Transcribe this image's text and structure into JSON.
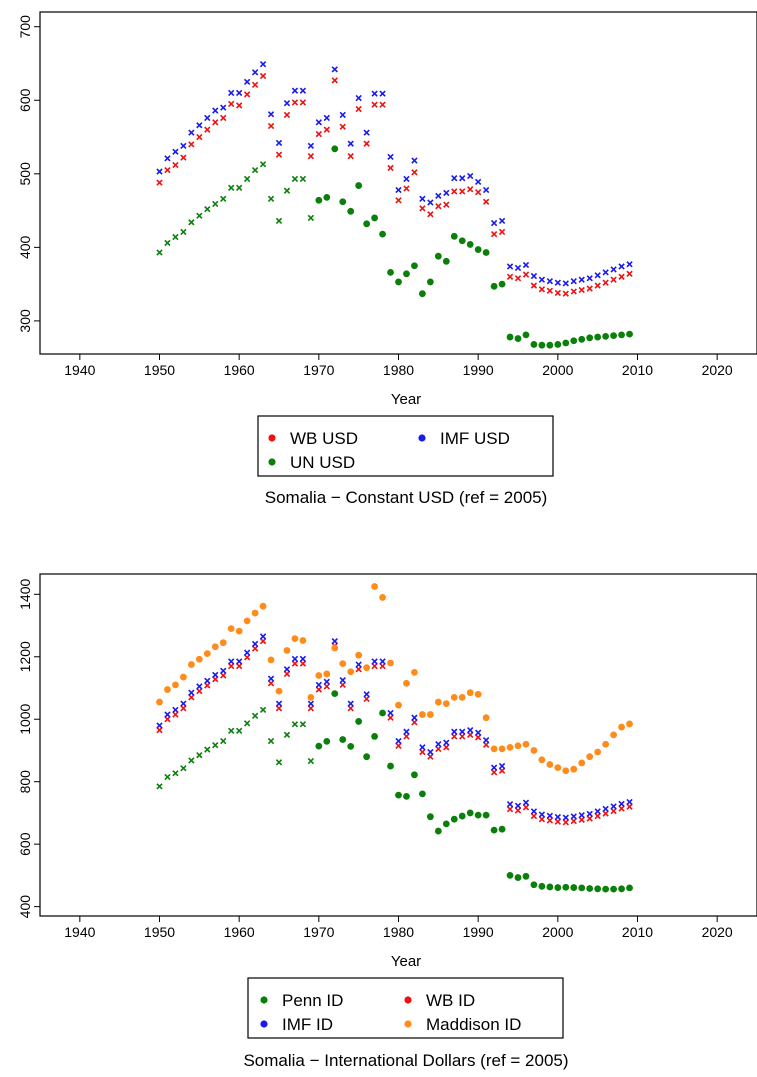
{
  "chart_data": [
    {
      "type": "scatter",
      "title": "Somalia − Constant USD (ref = 2005)",
      "xlabel": "Year",
      "ylabel": "",
      "xlim": [
        1935,
        2025
      ],
      "ylim": [
        255,
        720
      ],
      "x_ticks": [
        1940,
        1950,
        1960,
        1970,
        1980,
        1990,
        2000,
        2010,
        2020
      ],
      "y_ticks": [
        300,
        400,
        500,
        600,
        700
      ],
      "grid": false,
      "legend_placement": "bottom",
      "legend_order": [
        "WB USD",
        "IMF USD",
        "UN USD"
      ],
      "series": [
        {
          "name": "WB USD",
          "color": "#ee1111",
          "marker": "x",
          "x": [
            1950,
            1951,
            1952,
            1953,
            1954,
            1955,
            1956,
            1957,
            1958,
            1959,
            1960,
            1961,
            1962,
            1963,
            1964,
            1965,
            1966,
            1967,
            1968,
            1969,
            1970,
            1971,
            1972,
            1973,
            1974,
            1975,
            1976,
            1977,
            1978,
            1979,
            1980,
            1981,
            1982,
            1983,
            1984,
            1985,
            1986,
            1987,
            1988,
            1989,
            1990,
            1991,
            1992,
            1993,
            1994,
            1995,
            1996,
            1997,
            1998,
            1999,
            2000,
            2001,
            2002,
            2003,
            2004,
            2005,
            2006,
            2007,
            2008,
            2009
          ],
          "y": [
            488,
            505,
            512,
            522,
            540,
            550,
            560,
            570,
            576,
            595,
            593,
            608,
            621,
            633,
            565,
            526,
            580,
            597,
            597,
            524,
            554,
            560,
            627,
            564,
            524,
            588,
            541,
            594,
            594,
            508,
            464,
            480,
            502,
            453,
            445,
            456,
            458,
            476,
            476,
            479,
            475,
            462,
            418,
            421,
            360,
            358,
            363,
            348,
            343,
            341,
            338,
            337,
            340,
            342,
            344,
            348,
            352,
            356,
            360,
            364
          ]
        },
        {
          "name": "IMF USD",
          "color": "#1a1aee",
          "marker": "x",
          "x": [
            1950,
            1951,
            1952,
            1953,
            1954,
            1955,
            1956,
            1957,
            1958,
            1959,
            1960,
            1961,
            1962,
            1963,
            1964,
            1965,
            1966,
            1967,
            1968,
            1969,
            1970,
            1971,
            1972,
            1973,
            1974,
            1975,
            1976,
            1977,
            1978,
            1979,
            1980,
            1981,
            1982,
            1983,
            1984,
            1985,
            1986,
            1987,
            1988,
            1989,
            1990,
            1991,
            1992,
            1993,
            1994,
            1995,
            1996,
            1997,
            1998,
            1999,
            2000,
            2001,
            2002,
            2003,
            2004,
            2005,
            2006,
            2007,
            2008,
            2009
          ],
          "y": [
            503,
            521,
            530,
            538,
            556,
            566,
            576,
            586,
            590,
            610,
            610,
            625,
            638,
            649,
            581,
            542,
            596,
            613,
            613,
            538,
            570,
            576,
            642,
            580,
            541,
            603,
            556,
            609,
            609,
            523,
            478,
            493,
            518,
            466,
            461,
            470,
            474,
            494,
            494,
            497,
            489,
            478,
            433,
            436,
            374,
            372,
            376,
            361,
            356,
            354,
            352,
            351,
            354,
            356,
            358,
            362,
            366,
            370,
            374,
            377
          ]
        },
        {
          "name": "UN USD",
          "color": "#0a7f0a",
          "marker": "mixed",
          "x": [
            1950,
            1951,
            1952,
            1953,
            1954,
            1955,
            1956,
            1957,
            1958,
            1959,
            1960,
            1961,
            1962,
            1963,
            1964,
            1965,
            1966,
            1967,
            1968,
            1969,
            1970,
            1971,
            1972,
            1973,
            1974,
            1975,
            1976,
            1977,
            1978,
            1979,
            1980,
            1981,
            1982,
            1983,
            1984,
            1985,
            1986,
            1987,
            1988,
            1989,
            1990,
            1991,
            1992,
            1993,
            1994,
            1995,
            1996,
            1997,
            1998,
            1999,
            2000,
            2001,
            2002,
            2003,
            2004,
            2005,
            2006,
            2007,
            2008,
            2009
          ],
          "y": [
            393,
            406,
            414,
            421,
            434,
            443,
            452,
            459,
            466,
            481,
            481,
            493,
            505,
            513,
            466,
            436,
            477,
            493,
            493,
            440,
            464,
            468,
            534,
            462,
            449,
            484,
            432,
            440,
            418,
            366,
            353,
            364,
            375,
            337,
            353,
            388,
            381,
            415,
            409,
            404,
            397,
            393,
            347,
            350,
            278,
            276,
            281,
            268,
            267,
            267,
            268,
            270,
            273,
            275,
            277,
            278,
            279,
            280,
            281,
            282
          ],
          "markers": [
            "x",
            "x",
            "x",
            "x",
            "x",
            "x",
            "x",
            "x",
            "x",
            "x",
            "x",
            "x",
            "x",
            "x",
            "x",
            "x",
            "x",
            "x",
            "x",
            "x",
            "o",
            "o",
            "o",
            "o",
            "o",
            "o",
            "o",
            "o",
            "o",
            "o",
            "o",
            "o",
            "o",
            "o",
            "o",
            "o",
            "o",
            "o",
            "o",
            "o",
            "o",
            "o",
            "o",
            "o",
            "o",
            "o",
            "o",
            "o",
            "o",
            "o",
            "o",
            "o",
            "o",
            "o",
            "o",
            "o",
            "o",
            "o",
            "o",
            "o"
          ]
        }
      ]
    },
    {
      "type": "scatter",
      "title": "Somalia − International Dollars (ref = 2005)",
      "xlabel": "Year",
      "ylabel": "",
      "xlim": [
        1935,
        2025
      ],
      "ylim": [
        370,
        1465
      ],
      "x_ticks": [
        1940,
        1950,
        1960,
        1970,
        1980,
        1990,
        2000,
        2010,
        2020
      ],
      "y_ticks": [
        400,
        600,
        800,
        1000,
        1200,
        1400
      ],
      "grid": false,
      "legend_placement": "bottom",
      "legend_order": [
        "Penn ID",
        "WB ID",
        "IMF ID",
        "Maddison ID"
      ],
      "series": [
        {
          "name": "Penn ID",
          "color": "#0a7f0a",
          "marker": "mixed",
          "x": [
            1950,
            1951,
            1952,
            1953,
            1954,
            1955,
            1956,
            1957,
            1958,
            1959,
            1960,
            1961,
            1962,
            1963,
            1964,
            1965,
            1966,
            1967,
            1968,
            1969,
            1970,
            1971,
            1972,
            1973,
            1974,
            1975,
            1976,
            1977,
            1978,
            1979,
            1980,
            1981,
            1982,
            1983,
            1984,
            1985,
            1986,
            1987,
            1988,
            1989,
            1990,
            1991,
            1992,
            1993,
            1994,
            1995,
            1996,
            1997,
            1998,
            1999,
            2000,
            2001,
            2002,
            2003,
            2004,
            2005,
            2006,
            2007,
            2008,
            2009
          ],
          "y": [
            785,
            815,
            827,
            843,
            868,
            885,
            903,
            917,
            930,
            963,
            963,
            987,
            1011,
            1030,
            930,
            862,
            950,
            984,
            984,
            866,
            914,
            929,
            1082,
            935,
            913,
            993,
            880,
            945,
            1020,
            850,
            757,
            753,
            822,
            761,
            688,
            642,
            665,
            680,
            690,
            700,
            693,
            693,
            645,
            648,
            500,
            493,
            497,
            470,
            465,
            463,
            461,
            462,
            461,
            460,
            458,
            457,
            456,
            456,
            457,
            460
          ],
          "markers": [
            "x",
            "x",
            "x",
            "x",
            "x",
            "x",
            "x",
            "x",
            "x",
            "x",
            "x",
            "x",
            "x",
            "x",
            "x",
            "x",
            "x",
            "x",
            "x",
            "x",
            "o",
            "o",
            "o",
            "o",
            "o",
            "o",
            "o",
            "o",
            "o",
            "o",
            "o",
            "o",
            "o",
            "o",
            "o",
            "o",
            "o",
            "o",
            "o",
            "o",
            "o",
            "o",
            "o",
            "o",
            "o",
            "o",
            "o",
            "o",
            "o",
            "o",
            "o",
            "o",
            "o",
            "o",
            "o",
            "o",
            "o",
            "o",
            "o",
            "o"
          ]
        },
        {
          "name": "WB ID",
          "color": "#ee1111",
          "marker": "x",
          "x": [
            1950,
            1951,
            1952,
            1953,
            1954,
            1955,
            1956,
            1957,
            1958,
            1959,
            1960,
            1961,
            1962,
            1963,
            1964,
            1965,
            1966,
            1967,
            1968,
            1969,
            1970,
            1971,
            1972,
            1973,
            1974,
            1975,
            1976,
            1977,
            1978,
            1979,
            1980,
            1981,
            1982,
            1983,
            1984,
            1985,
            1986,
            1987,
            1988,
            1989,
            1990,
            1991,
            1992,
            1993,
            1994,
            1995,
            1996,
            1997,
            1998,
            1999,
            2000,
            2001,
            2002,
            2003,
            2004,
            2005,
            2006,
            2007,
            2008,
            2009
          ],
          "y": [
            965,
            1000,
            1015,
            1035,
            1070,
            1090,
            1108,
            1128,
            1140,
            1170,
            1170,
            1198,
            1226,
            1250,
            1115,
            1035,
            1145,
            1178,
            1178,
            1035,
            1095,
            1105,
            1235,
            1110,
            1035,
            1160,
            1065,
            1170,
            1170,
            1005,
            915,
            945,
            990,
            895,
            880,
            905,
            910,
            945,
            945,
            950,
            942,
            918,
            830,
            835,
            712,
            708,
            718,
            690,
            680,
            676,
            672,
            670,
            674,
            678,
            682,
            690,
            698,
            706,
            714,
            720
          ]
        },
        {
          "name": "IMF ID",
          "color": "#1a1aee",
          "marker": "x",
          "x": [
            1950,
            1951,
            1952,
            1953,
            1954,
            1955,
            1956,
            1957,
            1958,
            1959,
            1960,
            1961,
            1962,
            1963,
            1964,
            1965,
            1966,
            1967,
            1968,
            1969,
            1970,
            1971,
            1972,
            1973,
            1974,
            1975,
            1976,
            1977,
            1978,
            1979,
            1980,
            1981,
            1982,
            1983,
            1984,
            1985,
            1986,
            1987,
            1988,
            1989,
            1990,
            1991,
            1992,
            1993,
            1994,
            1995,
            1996,
            1997,
            1998,
            1999,
            2000,
            2001,
            2002,
            2003,
            2004,
            2005,
            2006,
            2007,
            2008,
            2009
          ],
          "y": [
            980,
            1015,
            1030,
            1050,
            1085,
            1105,
            1123,
            1142,
            1155,
            1185,
            1185,
            1213,
            1241,
            1265,
            1130,
            1050,
            1160,
            1193,
            1193,
            1050,
            1110,
            1120,
            1250,
            1125,
            1050,
            1175,
            1080,
            1185,
            1185,
            1020,
            930,
            960,
            1005,
            910,
            895,
            920,
            925,
            960,
            960,
            965,
            957,
            933,
            845,
            850,
            728,
            723,
            733,
            705,
            695,
            691,
            687,
            685,
            689,
            693,
            697,
            705,
            713,
            721,
            729,
            735
          ]
        },
        {
          "name": "Maddison ID",
          "color": "#ff8c1a",
          "marker": "o",
          "x": [
            1950,
            1951,
            1952,
            1953,
            1954,
            1955,
            1956,
            1957,
            1958,
            1959,
            1960,
            1961,
            1962,
            1963,
            1964,
            1965,
            1966,
            1967,
            1968,
            1969,
            1970,
            1971,
            1972,
            1973,
            1974,
            1975,
            1976,
            1977,
            1978,
            1979,
            1980,
            1981,
            1982,
            1983,
            1984,
            1985,
            1986,
            1987,
            1988,
            1989,
            1990,
            1991,
            1992,
            1993,
            1994,
            1995,
            1996,
            1997,
            1998,
            1999,
            2000,
            2001,
            2002,
            2003,
            2004,
            2005,
            2006,
            2007,
            2008,
            2009
          ],
          "y": [
            1055,
            1095,
            1110,
            1135,
            1175,
            1192,
            1210,
            1232,
            1245,
            1290,
            1282,
            1315,
            1340,
            1362,
            1190,
            1090,
            1220,
            1258,
            1252,
            1070,
            1140,
            1145,
            1228,
            1178,
            1152,
            1205,
            1165,
            1425,
            1390,
            1180,
            1045,
            1115,
            1150,
            1015,
            1015,
            1055,
            1050,
            1070,
            1070,
            1085,
            1080,
            1005,
            905,
            905,
            910,
            915,
            920,
            900,
            870,
            855,
            845,
            835,
            840,
            860,
            880,
            895,
            920,
            950,
            975,
            985
          ]
        }
      ]
    }
  ]
}
